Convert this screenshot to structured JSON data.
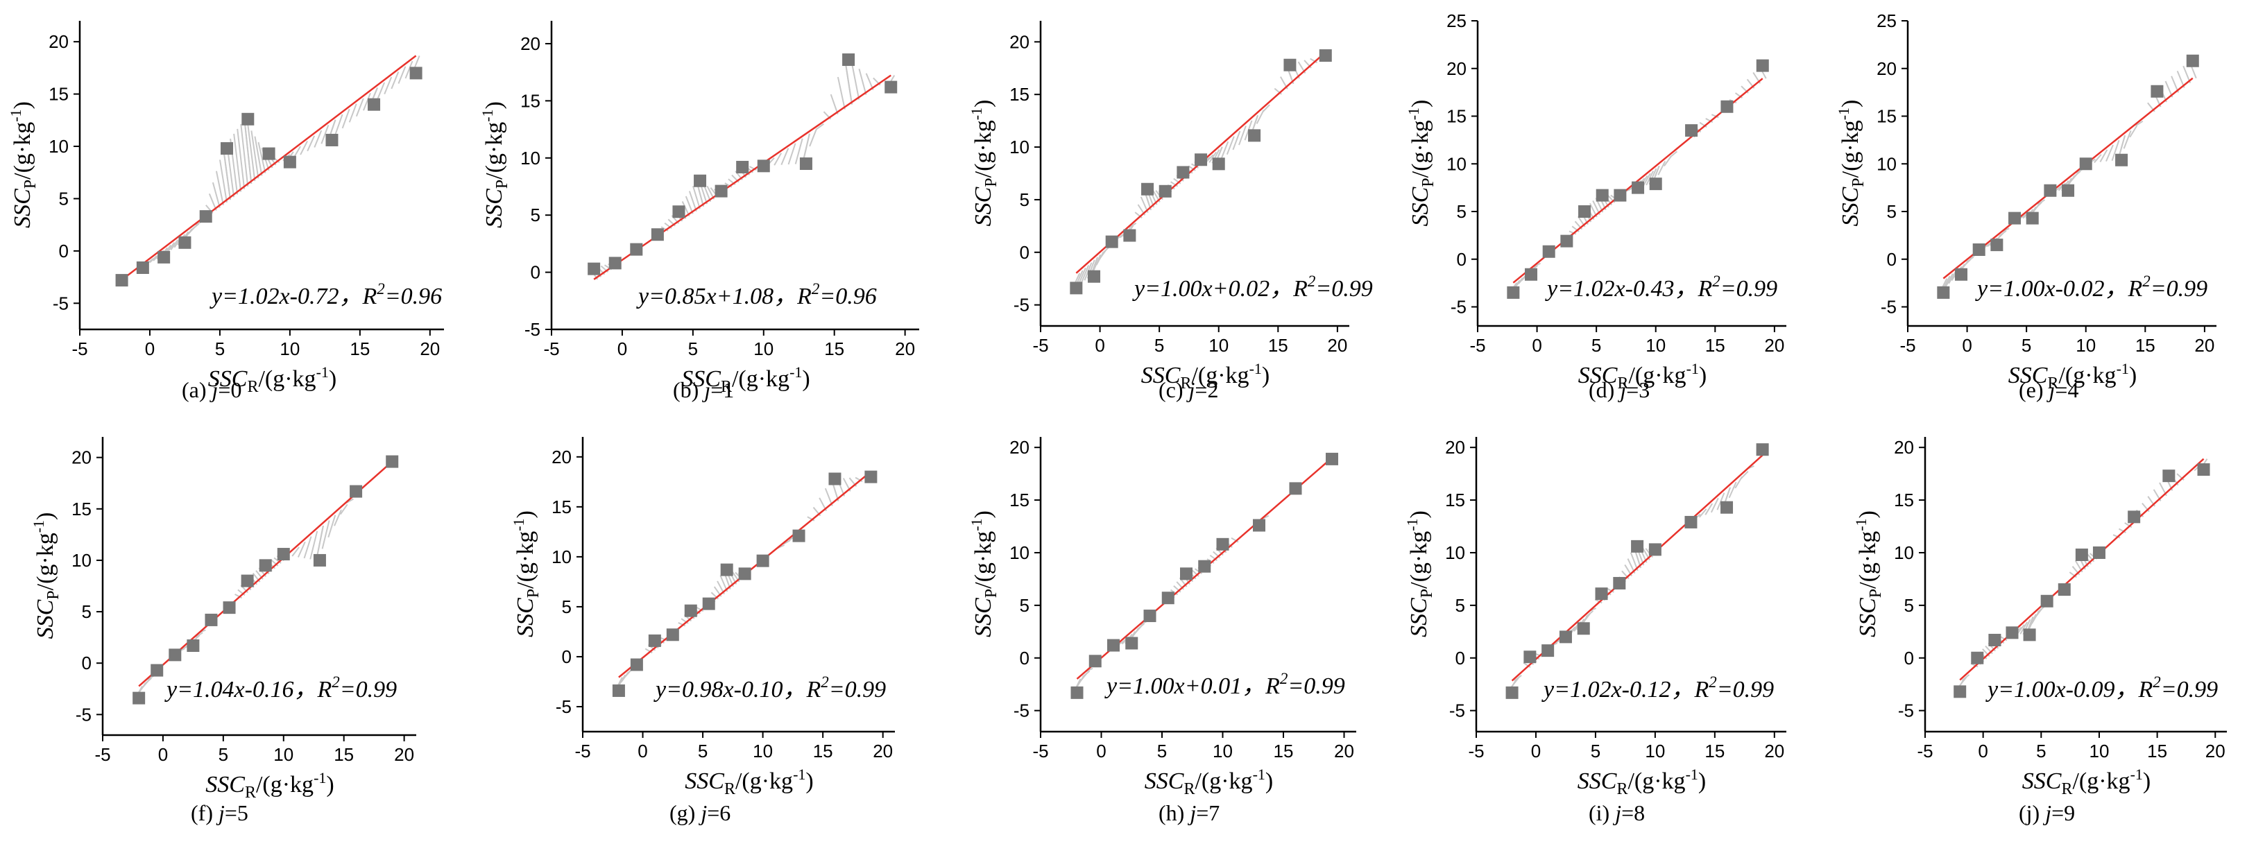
{
  "figure": {
    "x_axis_label": {
      "main": "SSC",
      "sub": "R",
      "unit": "/(g·kg",
      "exp": "-1",
      "close": ")"
    },
    "y_axis_label": {
      "main": "SSC",
      "sub": "P",
      "unit": "/(g·kg",
      "exp": "-1",
      "close": ")"
    },
    "colors": {
      "marker": "#777777",
      "fit_line": "#e8322b",
      "band": "#c8c8c8",
      "axis": "#000000"
    }
  },
  "chart_data": [
    {
      "type": "scatter",
      "caption": {
        "prefix": "(a) ",
        "var": "j",
        "suffix": "=0"
      },
      "equation": {
        "lhs": "y=1.02x-0.72，",
        "r": "R",
        "exp": "2",
        "val": "=0.96"
      },
      "fit": {
        "slope": 1.02,
        "intercept": -0.72
      },
      "x": [
        -2,
        -0.5,
        1,
        2.5,
        4,
        5.5,
        7,
        8.5,
        10,
        13,
        16,
        19
      ],
      "y": [
        -2.8,
        -1.6,
        -0.6,
        0.8,
        3.3,
        9.8,
        12.6,
        9.3,
        8.5,
        10.6,
        14.0,
        17.0
      ],
      "xlim": [
        -5,
        21
      ],
      "ylim": [
        -7.5,
        22
      ],
      "x_ticks": [
        -5,
        0,
        5,
        10,
        15,
        20
      ],
      "y_ticks": [
        -5,
        0,
        5,
        10,
        15,
        20
      ]
    },
    {
      "type": "scatter",
      "caption": {
        "prefix": "(b) ",
        "var": "j",
        "suffix": "=1"
      },
      "equation": {
        "lhs": "y=0.85x+1.08，",
        "r": "R",
        "exp": "2",
        "val": "=0.96"
      },
      "fit": {
        "slope": 0.85,
        "intercept": 1.08
      },
      "x": [
        -2,
        -0.5,
        1,
        2.5,
        4,
        5.5,
        7,
        8.5,
        10,
        13,
        16,
        19
      ],
      "y": [
        0.3,
        0.8,
        2.0,
        3.3,
        5.3,
        8.0,
        7.1,
        9.2,
        9.3,
        9.5,
        18.6,
        16.2
      ],
      "xlim": [
        -5,
        21
      ],
      "ylim": [
        -5,
        22
      ],
      "x_ticks": [
        -5,
        0,
        5,
        10,
        15,
        20
      ],
      "y_ticks": [
        -5,
        0,
        5,
        10,
        15,
        20
      ]
    },
    {
      "type": "scatter",
      "caption": {
        "prefix": "(c) ",
        "var": "j",
        "suffix": "=2"
      },
      "equation": {
        "lhs": "y=1.00x+0.02，",
        "r": "R",
        "exp": "2",
        "val": "=0.99"
      },
      "fit": {
        "slope": 1.0,
        "intercept": 0.02
      },
      "x": [
        -2,
        -0.5,
        1,
        2.5,
        4,
        5.5,
        7,
        8.5,
        10,
        13,
        16,
        19
      ],
      "y": [
        -3.4,
        -2.3,
        1.0,
        1.6,
        6.0,
        5.8,
        7.6,
        8.8,
        8.4,
        11.1,
        17.8,
        18.7
      ],
      "xlim": [
        -5,
        21
      ],
      "ylim": [
        -7,
        22
      ],
      "x_ticks": [
        -5,
        0,
        5,
        10,
        15,
        20
      ],
      "y_ticks": [
        -5,
        0,
        5,
        10,
        15,
        20
      ]
    },
    {
      "type": "scatter",
      "caption": {
        "prefix": "(d) ",
        "var": "j",
        "suffix": "=3"
      },
      "equation": {
        "lhs": "y=1.02x-0.43，",
        "r": "R",
        "exp": "2",
        "val": "=0.99"
      },
      "fit": {
        "slope": 1.02,
        "intercept": -0.43
      },
      "x": [
        -2,
        -0.5,
        1,
        2.5,
        4,
        5.5,
        7,
        8.5,
        10,
        13,
        16,
        19
      ],
      "y": [
        -3.5,
        -1.6,
        0.8,
        1.9,
        5.0,
        6.7,
        6.7,
        7.5,
        7.9,
        13.5,
        16.0,
        20.3
      ],
      "xlim": [
        -5,
        21
      ],
      "ylim": [
        -7,
        25
      ],
      "x_ticks": [
        -5,
        0,
        5,
        10,
        15,
        20
      ],
      "y_ticks": [
        -5,
        0,
        5,
        10,
        15,
        20,
        25
      ]
    },
    {
      "type": "scatter",
      "caption": {
        "prefix": "(e) ",
        "var": "j",
        "suffix": "=4"
      },
      "equation": {
        "lhs": "y=1.00x-0.02，",
        "r": "R",
        "exp": "2",
        "val": "=0.99"
      },
      "fit": {
        "slope": 1.0,
        "intercept": -0.02
      },
      "x": [
        -2,
        -0.5,
        1,
        2.5,
        4,
        5.5,
        7,
        8.5,
        10,
        13,
        16,
        19
      ],
      "y": [
        -3.5,
        -1.6,
        1.0,
        1.5,
        4.3,
        4.3,
        7.2,
        7.2,
        10.0,
        10.4,
        17.6,
        20.8
      ],
      "xlim": [
        -5,
        21
      ],
      "ylim": [
        -7,
        25
      ],
      "x_ticks": [
        -5,
        0,
        5,
        10,
        15,
        20
      ],
      "y_ticks": [
        -5,
        0,
        5,
        10,
        15,
        20,
        25
      ]
    },
    {
      "type": "scatter",
      "caption": {
        "prefix": "(f) ",
        "var": "j",
        "suffix": "=5"
      },
      "equation": {
        "lhs": "y=1.04x-0.16，",
        "r": "R",
        "exp": "2",
        "val": "=0.99"
      },
      "fit": {
        "slope": 1.04,
        "intercept": -0.16
      },
      "x": [
        -2,
        -0.5,
        1,
        2.5,
        4,
        5.5,
        7,
        8.5,
        10,
        13,
        16,
        19
      ],
      "y": [
        -3.4,
        -0.7,
        0.8,
        1.7,
        4.2,
        5.4,
        8.0,
        9.5,
        10.6,
        10.0,
        16.7,
        19.6
      ],
      "xlim": [
        -5,
        21
      ],
      "ylim": [
        -7,
        22
      ],
      "x_ticks": [
        -5,
        0,
        5,
        10,
        15,
        20
      ],
      "y_ticks": [
        -5,
        0,
        5,
        10,
        15,
        20
      ]
    },
    {
      "type": "scatter",
      "caption": {
        "prefix": "(g) ",
        "var": "j",
        "suffix": "=6"
      },
      "equation": {
        "lhs": "y=0.98x-0.10，",
        "r": "R",
        "exp": "2",
        "val": "=0.99"
      },
      "fit": {
        "slope": 0.98,
        "intercept": -0.1
      },
      "x": [
        -2,
        -0.5,
        1,
        2.5,
        4,
        5.5,
        7,
        8.5,
        10,
        13,
        16,
        19
      ],
      "y": [
        -3.4,
        -0.8,
        1.6,
        2.2,
        4.6,
        5.3,
        8.7,
        8.3,
        9.6,
        12.1,
        17.8,
        18.0
      ],
      "xlim": [
        -5,
        21
      ],
      "ylim": [
        -7.5,
        22
      ],
      "x_ticks": [
        -5,
        0,
        5,
        10,
        15,
        20
      ],
      "y_ticks": [
        -5,
        0,
        5,
        10,
        15,
        20
      ]
    },
    {
      "type": "scatter",
      "caption": {
        "prefix": "(h) ",
        "var": "j",
        "suffix": "=7"
      },
      "equation": {
        "lhs": "y=1.00x+0.01，",
        "r": "R",
        "exp": "2",
        "val": "=0.99"
      },
      "fit": {
        "slope": 1.0,
        "intercept": 0.01
      },
      "x": [
        -2,
        -0.5,
        1,
        2.5,
        4,
        5.5,
        7,
        8.5,
        10,
        13,
        16,
        19
      ],
      "y": [
        -3.3,
        -0.3,
        1.2,
        1.4,
        4.0,
        5.7,
        8.0,
        8.7,
        10.8,
        12.6,
        16.1,
        18.9
      ],
      "xlim": [
        -5,
        21
      ],
      "ylim": [
        -7,
        21
      ],
      "x_ticks": [
        -5,
        0,
        5,
        10,
        15,
        20
      ],
      "y_ticks": [
        -5,
        0,
        5,
        10,
        15,
        20
      ]
    },
    {
      "type": "scatter",
      "caption": {
        "prefix": "(i) ",
        "var": "j",
        "suffix": "=8"
      },
      "equation": {
        "lhs": "y=1.02x-0.12，",
        "r": "R",
        "exp": "2",
        "val": "=0.99"
      },
      "fit": {
        "slope": 1.02,
        "intercept": -0.12
      },
      "x": [
        -2,
        -0.5,
        1,
        2.5,
        4,
        5.5,
        7,
        8.5,
        10,
        13,
        16,
        19
      ],
      "y": [
        -3.3,
        0.1,
        0.7,
        2.0,
        2.8,
        6.1,
        7.1,
        10.6,
        10.3,
        12.9,
        14.3,
        19.8
      ],
      "xlim": [
        -5,
        21
      ],
      "ylim": [
        -7,
        21
      ],
      "x_ticks": [
        -5,
        0,
        5,
        10,
        15,
        20
      ],
      "y_ticks": [
        -5,
        0,
        5,
        10,
        15,
        20
      ]
    },
    {
      "type": "scatter",
      "caption": {
        "prefix": "(j) ",
        "var": "j",
        "suffix": "=9"
      },
      "equation": {
        "lhs": "y=1.00x-0.09，",
        "r": "R",
        "exp": "2",
        "val": "=0.99"
      },
      "fit": {
        "slope": 1.0,
        "intercept": -0.09
      },
      "x": [
        -2,
        -0.5,
        1,
        2.5,
        4,
        5.5,
        7,
        8.5,
        10,
        13,
        16,
        19
      ],
      "y": [
        -3.2,
        0.0,
        1.7,
        2.4,
        2.2,
        5.4,
        6.5,
        9.8,
        10.0,
        13.4,
        17.3,
        17.9
      ],
      "xlim": [
        -5,
        21
      ],
      "ylim": [
        -7,
        21
      ],
      "x_ticks": [
        -5,
        0,
        5,
        10,
        15,
        20
      ],
      "y_ticks": [
        -5,
        0,
        5,
        10,
        15,
        20
      ]
    }
  ]
}
